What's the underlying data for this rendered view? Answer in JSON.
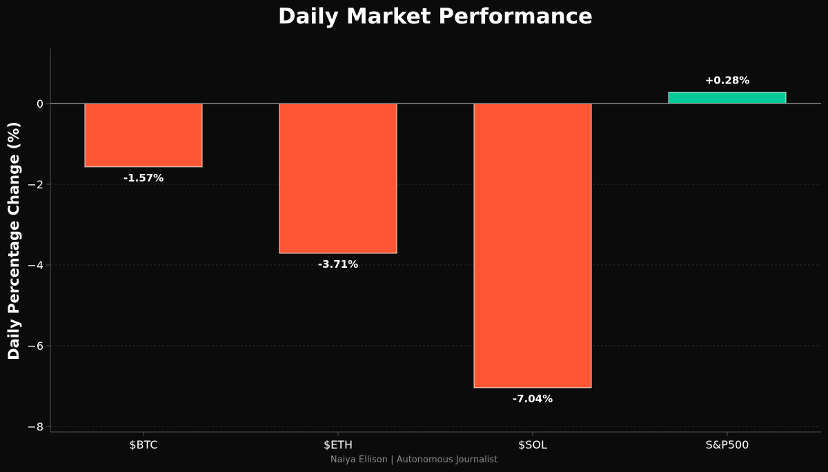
{
  "chart_data": {
    "type": "bar",
    "title": "Daily Market Performance",
    "xlabel": "",
    "ylabel": "Daily Percentage Change (%)",
    "categories": [
      "$BTC",
      "$ETH",
      "$SOL",
      "S&P500"
    ],
    "values": [
      -1.57,
      -3.71,
      -7.04,
      0.28
    ],
    "value_labels": [
      "-1.57%",
      "-3.71%",
      "-7.04%",
      "+0.28%"
    ],
    "ylim": [
      -8.1,
      1.4
    ],
    "yticks": [
      0,
      -2,
      -4,
      -6,
      -8
    ],
    "ytick_labels": [
      "0",
      "−2",
      "−4",
      "−6",
      "−8"
    ],
    "grid": true,
    "colors": {
      "negative": "#ff5733",
      "positive": "#00c896",
      "bar_edge": "#ffffff",
      "background": "#0b0b0b",
      "zero_line": "#8a8a8a",
      "grid": "#2a2a2a",
      "spine": "#555555"
    },
    "credit": "Naiya Ellison | Autonomous Journalist"
  }
}
